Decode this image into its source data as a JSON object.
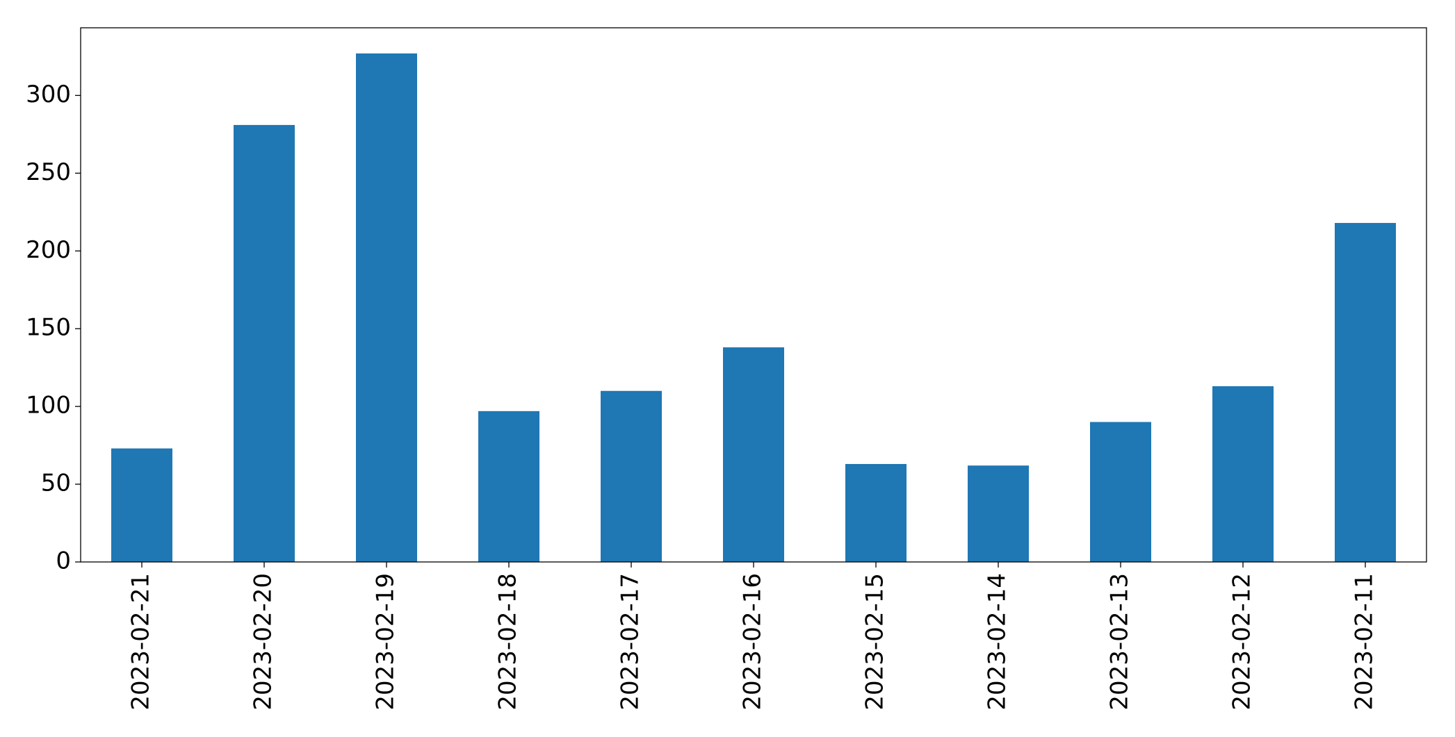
{
  "chart_data": {
    "type": "bar",
    "categories": [
      "2023-02-21",
      "2023-02-20",
      "2023-02-19",
      "2023-02-18",
      "2023-02-17",
      "2023-02-16",
      "2023-02-15",
      "2023-02-14",
      "2023-02-13",
      "2023-02-12",
      "2023-02-11"
    ],
    "values": [
      73,
      281,
      327,
      97,
      110,
      138,
      63,
      62,
      90,
      113,
      218
    ],
    "color": "#1f77b4",
    "ylim": [
      0,
      343.5
    ],
    "yticks": [
      0,
      50,
      100,
      150,
      200,
      250,
      300
    ],
    "grid": false
  }
}
